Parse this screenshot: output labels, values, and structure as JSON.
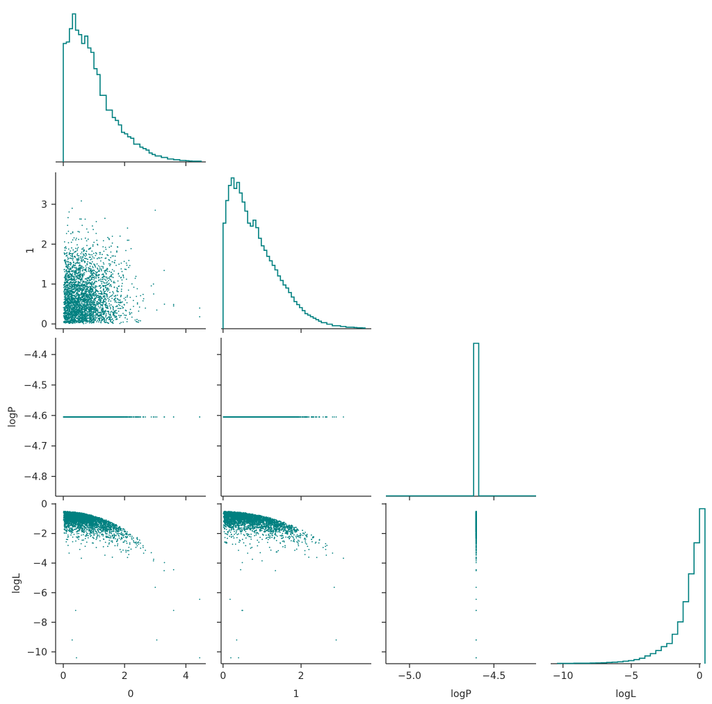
{
  "chart_data": {
    "type": "corner",
    "color": "#008080",
    "parameters": [
      "0",
      "1",
      "logP",
      "logL"
    ],
    "axis_labels": {
      "x": [
        "0",
        "1",
        "logP",
        "logL"
      ],
      "y": [
        "1",
        "logP",
        "logL"
      ]
    },
    "ranges": {
      "0": [
        -0.25,
        4.65
      ],
      "1": [
        -0.05,
        3.8
      ],
      "logP": [
        -5.14,
        -4.25
      ],
      "logL": [
        -10.9,
        0.1
      ]
    },
    "y_ranges": {
      "1": [
        -0.12,
        3.8
      ],
      "logP": [
        -4.865,
        -4.345
      ],
      "logL": [
        -10.8,
        0.05
      ]
    },
    "ticks": {
      "x": {
        "0": [
          "0",
          "2",
          "4"
        ],
        "1": [
          "0",
          "2"
        ],
        "logP": [
          "−5.0",
          "−4.5"
        ],
        "logL": [
          "−10",
          "−5",
          "0"
        ]
      },
      "y": {
        "1": [
          "0",
          "1",
          "2",
          "3"
        ],
        "logP": [
          "−4.4",
          "−4.5",
          "−4.6",
          "−4.7",
          "−4.8"
        ],
        "logL": [
          "0",
          "−2",
          "−4",
          "−6",
          "−8",
          "−10"
        ]
      }
    },
    "tick_values": {
      "x": {
        "0": [
          0,
          2,
          4
        ],
        "1": [
          0,
          2
        ],
        "logP": [
          -5.0,
          -4.5
        ],
        "logL": [
          -10,
          -5,
          0
        ]
      },
      "y": {
        "1": [
          0,
          1,
          2,
          3
        ],
        "logP": [
          -4.4,
          -4.5,
          -4.6,
          -4.7,
          -4.8
        ],
        "logL": [
          0,
          -2,
          -4,
          -6,
          -8,
          -10
        ]
      }
    },
    "histograms": {
      "0": {
        "bin_start": 0,
        "bin_width": 0.1,
        "counts": [
          80,
          81,
          90,
          100,
          89,
          86,
          80,
          85,
          77,
          74,
          63,
          59,
          45,
          45,
          35,
          35,
          30,
          28,
          25,
          20,
          19,
          17,
          16,
          12,
          12,
          10,
          9,
          8,
          6,
          5,
          4,
          4,
          3,
          3,
          2,
          2,
          1.5,
          1.5,
          1,
          1,
          0.8,
          0.6,
          0.5,
          0.5,
          0.5
        ]
      },
      "1": {
        "bin_start": 0,
        "bin_width": 0.07,
        "counts": [
          70,
          85,
          95,
          100,
          93,
          97,
          90,
          84,
          78,
          70,
          68,
          72,
          67,
          60,
          55,
          52,
          48,
          45,
          42,
          39,
          35,
          32,
          29,
          27,
          24,
          21,
          18,
          16,
          14,
          12,
          10,
          9,
          8,
          7,
          6,
          5,
          4,
          4,
          3,
          3,
          2,
          2,
          2,
          1.5,
          1.5,
          1,
          1,
          1,
          0.8,
          0.6,
          0.6,
          0.5
        ]
      },
      "logP": {
        "bin_start": -4.62,
        "bin_width": 0.03,
        "counts": [
          100
        ]
      },
      "logL": {
        "bin_start": -10.4,
        "bin_width": 0.4,
        "counts": [
          0.2,
          0.2,
          0.2,
          0.3,
          0.3,
          0.3,
          0.4,
          0.5,
          0.6,
          0.8,
          1,
          1.2,
          1.6,
          2,
          2.6,
          3.5,
          5,
          6.5,
          8.5,
          11,
          13,
          19,
          27,
          40,
          58,
          78,
          100
        ]
      }
    },
    "scatter_summary": {
      "n_points": 3000,
      "logP_constant": -4.605,
      "logL_envelope": "logL ≈ -0.5 - 0.3·(0² + 1²)",
      "outliers": {
        "0_vs_1": [
          [
            3.6,
            0.45
          ],
          [
            4.45,
            0.18
          ],
          [
            3.0,
            2.85
          ]
        ],
        "0_vs_logL": [
          [
            4.45,
            -10.4
          ],
          [
            3.05,
            -9.2
          ],
          [
            3.6,
            -7.2
          ]
        ],
        "1_vs_logL": [
          [
            0.2,
            -10.4
          ],
          [
            2.9,
            -9.2
          ],
          [
            0.5,
            -7.2
          ]
        ]
      }
    }
  }
}
